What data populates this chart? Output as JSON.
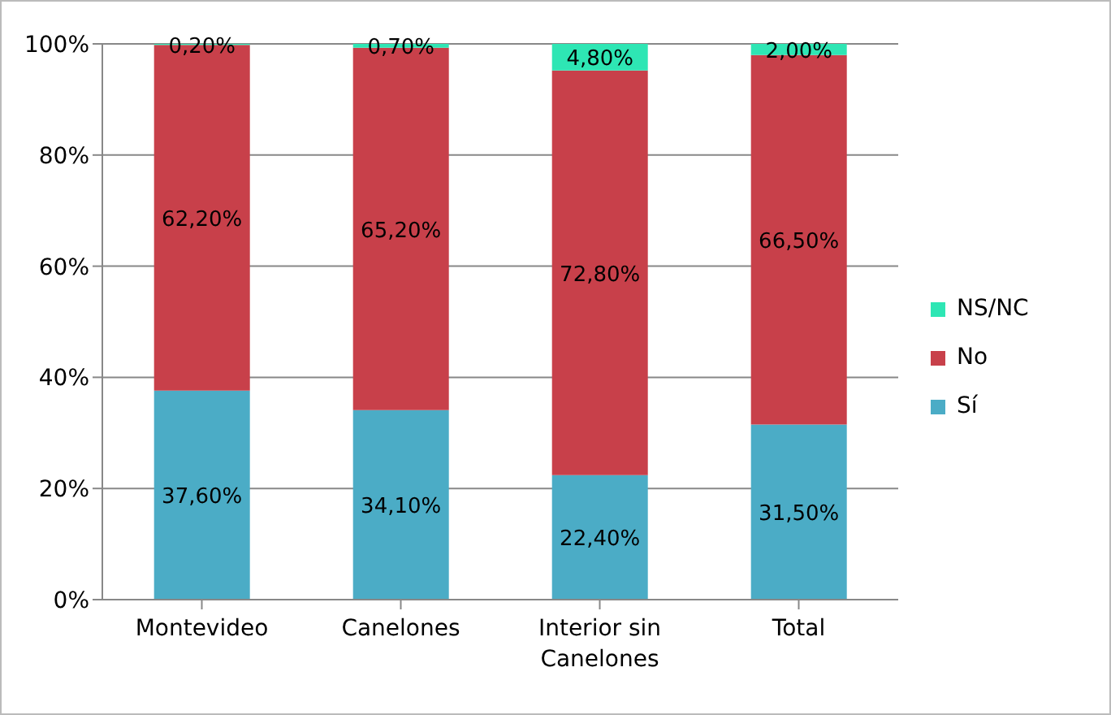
{
  "chart_data": {
    "type": "bar",
    "stacked": true,
    "categories": [
      "Montevideo",
      "Canelones",
      "Interior sin Canelones",
      "Total"
    ],
    "series": [
      {
        "name": "Sí",
        "color": "#4bacc6",
        "values": [
          37.6,
          34.1,
          22.4,
          31.5
        ],
        "value_labels": [
          "37,60%",
          "34,10%",
          "22,40%",
          "31,50%"
        ]
      },
      {
        "name": "No",
        "color": "#c8404a",
        "values": [
          62.2,
          65.2,
          72.8,
          66.5
        ],
        "value_labels": [
          "62,20%",
          "65,20%",
          "72,80%",
          "66,50%"
        ]
      },
      {
        "name": "NS/NC",
        "color": "#2ee6b4",
        "values": [
          0.2,
          0.7,
          4.8,
          2.0
        ],
        "value_labels": [
          "0,20%",
          "0,70%",
          "4,80%",
          "2,00%"
        ]
      }
    ],
    "ylim": [
      0,
      100
    ],
    "yticks": [
      {
        "value": 0,
        "label": "0%"
      },
      {
        "value": 20,
        "label": "20%"
      },
      {
        "value": 40,
        "label": "40%"
      },
      {
        "value": 60,
        "label": "60%"
      },
      {
        "value": 80,
        "label": "80%"
      },
      {
        "value": 100,
        "label": "100%"
      }
    ],
    "grid": "y",
    "legend": "right"
  }
}
